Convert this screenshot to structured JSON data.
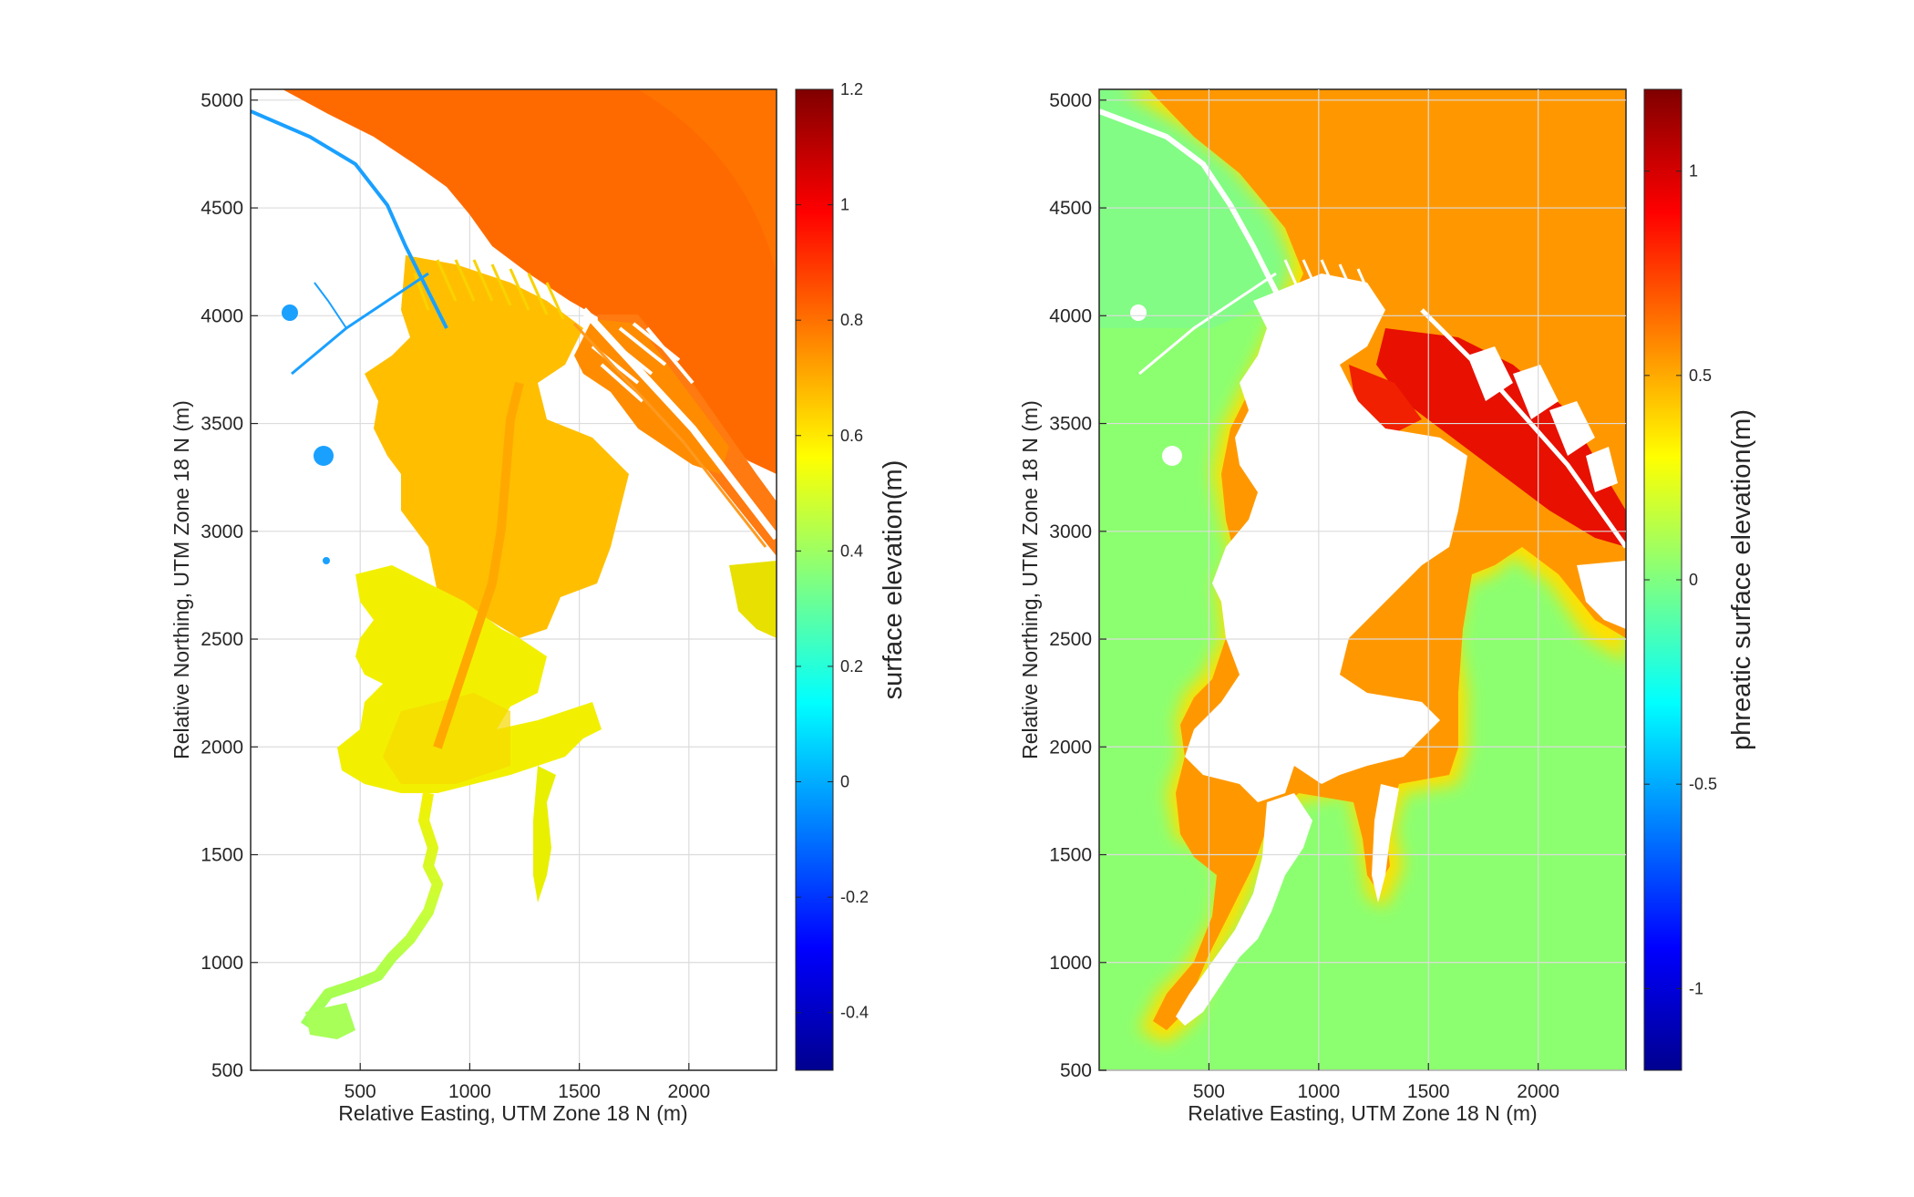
{
  "chart_data": [
    {
      "type": "heatmap",
      "title": "",
      "xlabel": "Relative Easting, UTM Zone 18 N (m)",
      "ylabel": "Relative Northing, UTM Zone 18 N (m)",
      "xlim": [
        0,
        2400
      ],
      "ylim": [
        500,
        5050
      ],
      "xticks": [
        500,
        1000,
        1500,
        2000
      ],
      "yticks": [
        500,
        1000,
        1500,
        2000,
        2500,
        3000,
        3500,
        4000,
        4500,
        5000
      ],
      "grid": true,
      "colormap": "jet",
      "colorbar": {
        "label": "surface elevation(m)",
        "clim": [
          -0.5,
          1.2
        ],
        "ticks": [
          -0.4,
          -0.2,
          0,
          0.2,
          0.4,
          0.6,
          0.8,
          1,
          1.2
        ]
      },
      "regions": [
        {
          "name": "ocean",
          "value": 0.88,
          "color": "#ff6a00"
        },
        {
          "name": "barrier island",
          "value": 0.85,
          "color": "#ff7f00"
        },
        {
          "name": "central marsh",
          "value": 0.68,
          "color": "#ffbf00"
        },
        {
          "name": "southern marsh",
          "value": 0.55,
          "color": "#f7f000"
        },
        {
          "name": "tidal creek",
          "value": 0.45,
          "color": "#a6ff59"
        },
        {
          "name": "northwest ditches",
          "value": 0.05,
          "color": "#1aa0ff"
        }
      ]
    },
    {
      "type": "heatmap",
      "title": "",
      "xlabel": "Relative Easting, UTM Zone 18 N (m)",
      "ylabel": "Relative Northing, UTM Zone 18 N (m)",
      "xlim": [
        0,
        2400
      ],
      "ylim": [
        500,
        5050
      ],
      "xticks": [
        500,
        1000,
        1500,
        2000
      ],
      "yticks": [
        500,
        1000,
        1500,
        2000,
        2500,
        3000,
        3500,
        4000,
        4500,
        5000
      ],
      "grid": true,
      "colormap": "jet",
      "colorbar": {
        "label": "phreatic surface elevation(m)",
        "clim": [
          -1.2,
          1.2
        ],
        "ticks": [
          -1,
          -0.5,
          0,
          0.5,
          1
        ]
      },
      "regions": [
        {
          "name": "background",
          "value": 0.1,
          "color": "#8cff70"
        },
        {
          "name": "marsh edge",
          "value": 0.5,
          "color": "#ff8c00"
        },
        {
          "name": "barrier island",
          "value": 0.9,
          "color": "#e60000"
        }
      ]
    }
  ]
}
